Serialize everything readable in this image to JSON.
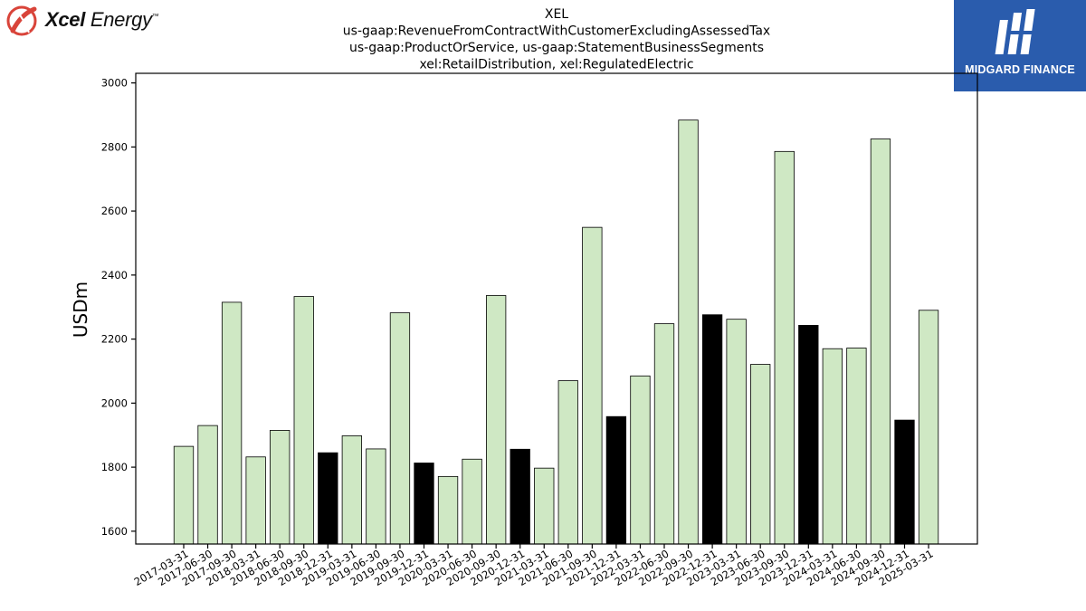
{
  "logos": {
    "left": {
      "wordmark_bold": "Xcel",
      "wordmark_rest": "Energy",
      "mark": "™"
    },
    "right": {
      "brand": "MIDGARD FINANCE"
    }
  },
  "colors": {
    "regular_bar": "#cfe8c4",
    "highlight_bar": "#000000",
    "brand_blue": "#2a5cad",
    "brand_red": "#d9443a"
  },
  "chart_data": {
    "type": "bar",
    "title_lines": [
      "XEL",
      "us-gaap:RevenueFromContractWithCustomerExcludingAssessedTax",
      "us-gaap:ProductOrService, us-gaap:StatementBusinessSegments",
      "xel:RetailDistribution, xel:RegulatedElectric"
    ],
    "ylabel": "USDm",
    "xlabel": "",
    "ylim": [
      1560,
      3030
    ],
    "yticks": [
      1600,
      1800,
      2000,
      2200,
      2400,
      2600,
      2800,
      3000
    ],
    "grid": false,
    "categories": [
      "2017-03-31",
      "2017-06-30",
      "2017-09-30",
      "2018-03-31",
      "2018-06-30",
      "2018-09-30",
      "2018-12-31",
      "2019-03-31",
      "2019-06-30",
      "2019-09-30",
      "2019-12-31",
      "2020-03-31",
      "2020-06-30",
      "2020-09-30",
      "2020-12-31",
      "2021-03-31",
      "2021-06-30",
      "2021-09-30",
      "2021-12-31",
      "2022-03-31",
      "2022-06-30",
      "2022-09-30",
      "2022-12-31",
      "2023-03-31",
      "2023-06-30",
      "2023-09-30",
      "2023-12-31",
      "2024-03-31",
      "2024-06-30",
      "2024-09-30",
      "2024-12-31",
      "2025-03-31"
    ],
    "values": [
      1865,
      1930,
      2315,
      1832,
      1915,
      2333,
      1845,
      1898,
      1857,
      2282,
      1813,
      1771,
      1825,
      2336,
      1856,
      1797,
      2070,
      2549,
      1958,
      2085,
      2248,
      2884,
      2276,
      2262,
      2121,
      2786,
      2243,
      2170,
      2172,
      2825,
      1947,
      2290
    ],
    "highlighted": [
      false,
      false,
      false,
      false,
      false,
      false,
      true,
      false,
      false,
      false,
      true,
      false,
      false,
      false,
      true,
      false,
      false,
      false,
      true,
      false,
      false,
      false,
      true,
      false,
      false,
      false,
      true,
      false,
      false,
      false,
      true,
      false
    ]
  }
}
